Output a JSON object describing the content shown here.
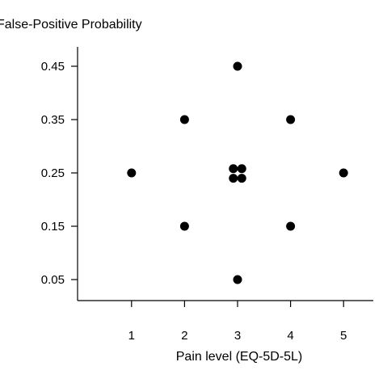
{
  "chart_data": {
    "type": "scatter",
    "title": "",
    "xlabel": "Pain level (EQ-5D-5L)",
    "ylabel": "False-Positive Probability",
    "xlim": [
      0,
      6
    ],
    "ylim": [
      0,
      0.5
    ],
    "x_ticks": [
      1,
      2,
      3,
      4,
      5
    ],
    "x_tick_labels": [
      "1",
      "2",
      "3",
      "4",
      "5"
    ],
    "y_ticks": [
      0.05,
      0.15,
      0.25,
      0.35,
      0.45
    ],
    "y_tick_labels": [
      "0.05",
      "0.15",
      "0.25",
      "0.35",
      "0.45"
    ],
    "grid": false,
    "marker_color": "#000000",
    "points": [
      {
        "x": 3,
        "y": 0.45
      },
      {
        "x": 2,
        "y": 0.35
      },
      {
        "x": 4,
        "y": 0.35
      },
      {
        "x": 1,
        "y": 0.25
      },
      {
        "x": 2.92,
        "y": 0.258
      },
      {
        "x": 3.08,
        "y": 0.258
      },
      {
        "x": 2.92,
        "y": 0.24
      },
      {
        "x": 3.08,
        "y": 0.24
      },
      {
        "x": 5,
        "y": 0.25
      },
      {
        "x": 2,
        "y": 0.15
      },
      {
        "x": 4,
        "y": 0.15
      },
      {
        "x": 3,
        "y": 0.05
      }
    ]
  }
}
